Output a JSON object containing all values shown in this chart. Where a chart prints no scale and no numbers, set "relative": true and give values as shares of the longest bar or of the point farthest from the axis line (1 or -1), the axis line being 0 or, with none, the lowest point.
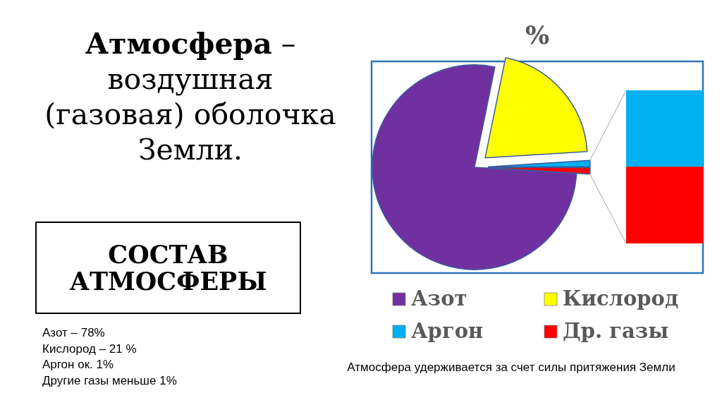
{
  "chart_data": [
    {
      "type": "pie",
      "title": "%",
      "categories": [
        "Азот",
        "Кислород",
        "Аргон",
        "Др. газы"
      ],
      "values": [
        77.2,
        20.8,
        1,
        1
      ],
      "colors": [
        "#7030a0",
        "#ffff00",
        "#00b0f0",
        "#ff0000"
      ],
      "legend": "bottom",
      "annotations": [
        "Атмосфера – воздушная (газовая) оболочка Земли.",
        "СОСТАВ АТМОСФЕРЫ",
        "Азот – 78%",
        "Кислород – 21 %",
        "Аргон ок. 1%",
        "Другие газы меньше 1%",
        "Атмосфера удерживается за счет силы притяжения Земли"
      ]
    },
    {
      "type": "bar",
      "stacked": true,
      "relative": true,
      "categories": [
        null
      ],
      "series": [
        {
          "color": "#ff0000",
          "values": [
            0.5
          ]
        },
        {
          "color": "#00b0f0",
          "values": [
            0.5
          ]
        }
      ]
    }
  ]
}
